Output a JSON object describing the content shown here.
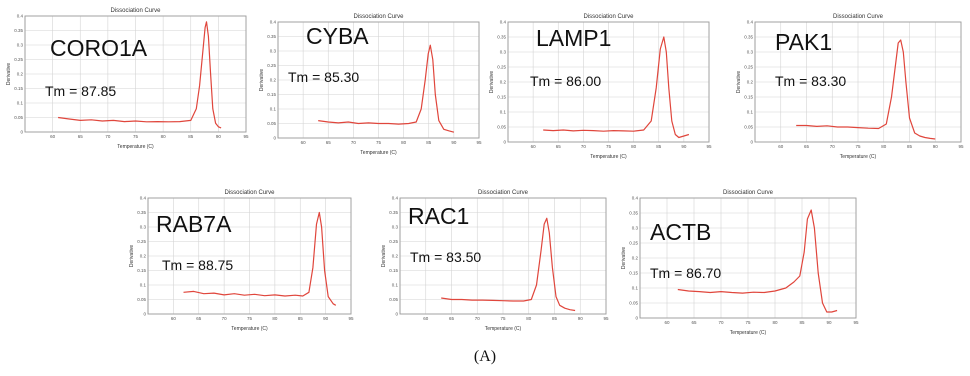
{
  "figure_label": "(A)",
  "chart_data": [
    {
      "type": "line",
      "title": "Dissociation Curve",
      "gene": "CORO1A",
      "tm_label": "Tm = 87.85",
      "xlabel": "Temperature (C)",
      "ylabel": "Derivative",
      "xlim": [
        55,
        95
      ],
      "x_ticks": [
        60,
        65,
        70,
        75,
        80,
        85,
        90,
        95
      ],
      "ylim": [
        0,
        0.4
      ],
      "y_ticks": [
        0,
        0.05,
        0.1,
        0.15,
        0.2,
        0.25,
        0.3,
        0.35,
        0.4
      ],
      "series": [
        {
          "x": [
            61,
            63,
            65,
            67,
            69,
            71,
            73,
            75,
            77,
            79,
            81,
            83,
            85,
            86,
            86.6,
            87.2,
            87.6,
            87.85,
            88.2,
            88.6,
            89,
            89.5,
            90,
            90.5
          ],
          "y": [
            0.05,
            0.045,
            0.04,
            0.042,
            0.038,
            0.04,
            0.036,
            0.038,
            0.035,
            0.036,
            0.035,
            0.036,
            0.04,
            0.08,
            0.16,
            0.28,
            0.36,
            0.38,
            0.33,
            0.2,
            0.08,
            0.03,
            0.018,
            0.014
          ]
        }
      ]
    },
    {
      "type": "line",
      "title": "Dissociation Curve",
      "gene": "CYBA",
      "tm_label": "Tm = 85.30",
      "xlabel": "Temperature (C)",
      "ylabel": "Derivative",
      "xlim": [
        55,
        95
      ],
      "x_ticks": [
        60,
        65,
        70,
        75,
        80,
        85,
        90,
        95
      ],
      "ylim": [
        0,
        0.4
      ],
      "y_ticks": [
        0,
        0.05,
        0.1,
        0.15,
        0.2,
        0.25,
        0.3,
        0.35,
        0.4
      ],
      "series": [
        {
          "x": [
            63,
            65,
            67,
            69,
            71,
            73,
            75,
            77,
            79,
            81,
            82.5,
            83.5,
            84.3,
            84.9,
            85.3,
            85.8,
            86.3,
            87,
            88,
            89,
            90
          ],
          "y": [
            0.06,
            0.055,
            0.052,
            0.055,
            0.05,
            0.052,
            0.05,
            0.05,
            0.048,
            0.05,
            0.055,
            0.1,
            0.2,
            0.29,
            0.32,
            0.27,
            0.15,
            0.06,
            0.03,
            0.025,
            0.02
          ]
        }
      ]
    },
    {
      "type": "line",
      "title": "Dissociation Curve",
      "gene": "LAMP1",
      "tm_label": "Tm = 86.00",
      "xlabel": "Temperature (C)",
      "ylabel": "Derivative",
      "xlim": [
        55,
        95
      ],
      "x_ticks": [
        60,
        65,
        70,
        75,
        80,
        85,
        90,
        95
      ],
      "ylim": [
        0,
        0.4
      ],
      "y_ticks": [
        0,
        0.05,
        0.1,
        0.15,
        0.2,
        0.25,
        0.3,
        0.35,
        0.4
      ],
      "series": [
        {
          "x": [
            62,
            64,
            66,
            68,
            70,
            72,
            74,
            76,
            78,
            80,
            82,
            83.5,
            84.5,
            85.3,
            86,
            86.5,
            87,
            87.6,
            88.3,
            89,
            90,
            91
          ],
          "y": [
            0.04,
            0.038,
            0.04,
            0.037,
            0.039,
            0.038,
            0.036,
            0.038,
            0.037,
            0.036,
            0.04,
            0.07,
            0.18,
            0.31,
            0.35,
            0.3,
            0.18,
            0.07,
            0.025,
            0.015,
            0.02,
            0.025
          ]
        }
      ]
    },
    {
      "type": "line",
      "title": "Dissociation Curve",
      "gene": "PAK1",
      "tm_label": "Tm = 83.30",
      "xlabel": "Temperature (C)",
      "ylabel": "Derivative",
      "xlim": [
        55,
        95
      ],
      "x_ticks": [
        60,
        65,
        70,
        75,
        80,
        85,
        90,
        95
      ],
      "ylim": [
        0,
        0.4
      ],
      "y_ticks": [
        0,
        0.05,
        0.1,
        0.15,
        0.2,
        0.25,
        0.3,
        0.35,
        0.4
      ],
      "series": [
        {
          "x": [
            63,
            65,
            67,
            69,
            71,
            73,
            75,
            77,
            79,
            80.5,
            81.5,
            82.3,
            82.8,
            83.3,
            83.8,
            84.3,
            85,
            86,
            87,
            88,
            89,
            90
          ],
          "y": [
            0.055,
            0.055,
            0.052,
            0.054,
            0.05,
            0.05,
            0.048,
            0.046,
            0.045,
            0.06,
            0.15,
            0.26,
            0.33,
            0.34,
            0.3,
            0.2,
            0.08,
            0.03,
            0.02,
            0.015,
            0.012,
            0.01
          ]
        }
      ]
    },
    {
      "type": "line",
      "title": "Dissociation Curve",
      "gene": "RAB7A",
      "tm_label": "Tm = 88.75",
      "xlabel": "Temperature (C)",
      "ylabel": "Derivative",
      "xlim": [
        55,
        95
      ],
      "x_ticks": [
        60,
        65,
        70,
        75,
        80,
        85,
        90,
        95
      ],
      "ylim": [
        0,
        0.4
      ],
      "y_ticks": [
        0,
        0.05,
        0.1,
        0.15,
        0.2,
        0.25,
        0.3,
        0.35,
        0.4
      ],
      "series": [
        {
          "x": [
            62,
            64,
            66,
            68,
            70,
            72,
            74,
            76,
            78,
            80,
            82,
            84,
            85.5,
            86.7,
            87.5,
            88.2,
            88.75,
            89.2,
            89.8,
            90.5,
            91.5,
            92
          ],
          "y": [
            0.075,
            0.078,
            0.07,
            0.072,
            0.066,
            0.07,
            0.065,
            0.068,
            0.063,
            0.066,
            0.062,
            0.065,
            0.062,
            0.075,
            0.16,
            0.31,
            0.35,
            0.3,
            0.15,
            0.06,
            0.035,
            0.03
          ]
        }
      ]
    },
    {
      "type": "line",
      "title": "Dissociation Curve",
      "gene": "RAC1",
      "tm_label": "Tm = 83.50",
      "xlabel": "Temperature (C)",
      "ylabel": "Derivative",
      "xlim": [
        55,
        95
      ],
      "x_ticks": [
        60,
        65,
        70,
        75,
        80,
        85,
        90,
        95
      ],
      "ylim": [
        0,
        0.4
      ],
      "y_ticks": [
        0,
        0.05,
        0.1,
        0.15,
        0.2,
        0.25,
        0.3,
        0.35,
        0.4
      ],
      "series": [
        {
          "x": [
            63,
            65,
            67,
            69,
            71,
            73,
            75,
            77,
            79,
            80.5,
            81.5,
            82.4,
            83,
            83.5,
            84,
            84.6,
            85.3,
            86,
            87,
            88,
            89
          ],
          "y": [
            0.055,
            0.05,
            0.05,
            0.048,
            0.048,
            0.047,
            0.046,
            0.045,
            0.045,
            0.05,
            0.1,
            0.22,
            0.31,
            0.33,
            0.28,
            0.16,
            0.06,
            0.03,
            0.02,
            0.015,
            0.012
          ]
        }
      ]
    },
    {
      "type": "line",
      "title": "Dissociation Curve",
      "gene": "ACTB",
      "tm_label": "Tm = 86.70",
      "xlabel": "Temperature (C)",
      "ylabel": "Derivative",
      "xlim": [
        55,
        95
      ],
      "x_ticks": [
        60,
        65,
        70,
        75,
        80,
        85,
        90,
        95
      ],
      "ylim": [
        0,
        0.4
      ],
      "y_ticks": [
        0,
        0.05,
        0.1,
        0.15,
        0.2,
        0.25,
        0.3,
        0.35,
        0.4
      ],
      "series": [
        {
          "x": [
            62,
            64,
            66,
            68,
            70,
            72,
            74,
            76,
            78,
            80,
            82,
            83.5,
            84.6,
            85.4,
            86,
            86.7,
            87.3,
            88,
            88.8,
            89.6,
            90.5,
            91.5
          ],
          "y": [
            0.095,
            0.09,
            0.088,
            0.085,
            0.088,
            0.085,
            0.083,
            0.086,
            0.085,
            0.09,
            0.1,
            0.12,
            0.14,
            0.22,
            0.33,
            0.36,
            0.3,
            0.15,
            0.05,
            0.02,
            0.02,
            0.025
          ]
        }
      ]
    }
  ]
}
